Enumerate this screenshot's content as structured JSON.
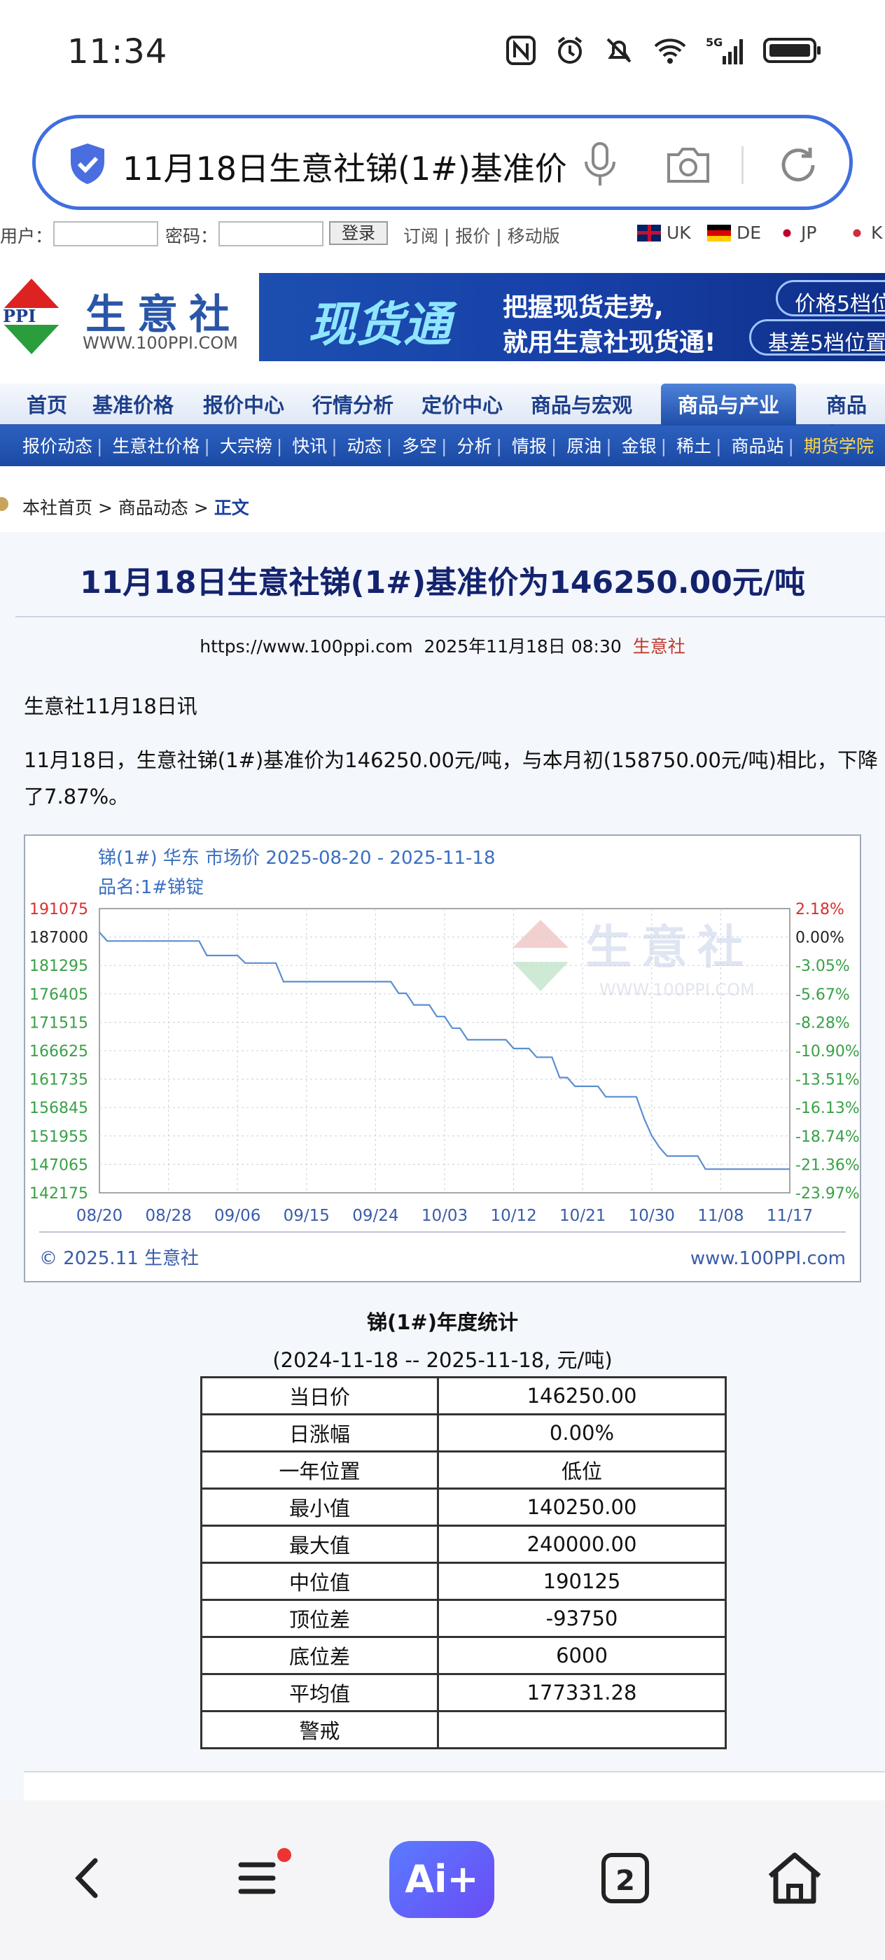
{
  "status_bar": {
    "time": "11:34",
    "network": "5G"
  },
  "url_bar": {
    "text": "11月18日生意社锑(1#)基准价"
  },
  "login_bar": {
    "user_label": "用户：",
    "password_label": "密码：",
    "login_button": "登录",
    "links": "订阅 | 报价 | 移动版",
    "languages": [
      "UK",
      "DE",
      "JP",
      "K"
    ]
  },
  "header": {
    "logo_text": "生意社",
    "logo_url": "WWW.100PPI.COM",
    "banner": {
      "title": "现货通",
      "line1": "把握现货走势,",
      "line2": "就用生意社现货通!",
      "pill1": "价格5档位",
      "pill2": "基差5档位置"
    }
  },
  "nav": {
    "tabs": [
      "首页",
      "基准价格",
      "报价中心",
      "行情分析",
      "定价中心",
      "商品与宏观",
      "商品与产业",
      "商品与"
    ],
    "active": "商品与产业"
  },
  "subnav": {
    "items": [
      "报价动态",
      "生意社价格",
      "大宗榜",
      "快讯",
      "动态",
      "多空",
      "分析",
      "情报",
      "原油",
      "金银",
      "稀土",
      "商品站"
    ],
    "highlight": "期货学院"
  },
  "breadcrumb": {
    "home": "本社首页",
    "section": "商品动态",
    "current": "正文",
    "sep": ">"
  },
  "article": {
    "title": "11月18日生意社锑(1#)基准价为146250.00元/吨",
    "url": "https://www.100ppi.com",
    "datetime": "2025年11月18日 08:30",
    "source": "生意社",
    "para1": "生意社11月18日讯",
    "para2": "11月18日，生意社锑(1#)基准价为146250.00元/吨，与本月初(158750.00元/吨)相比，下降了7.87%。"
  },
  "chart_data": {
    "type": "line",
    "title": "锑(1#) 华东 市场价 2025-08-20 - 2025-11-18",
    "subtitle": "品名:1#锑锭",
    "footer_left": "© 2025.11 生意社",
    "footer_right": "www.100PPI.com",
    "watermark": "生意社",
    "watermark_url": "WWW.100PPI.COM",
    "x_ticks": [
      "08/20",
      "08/28",
      "09/06",
      "09/15",
      "09/24",
      "10/03",
      "10/12",
      "10/21",
      "10/30",
      "11/08",
      "11/17"
    ],
    "y_ticks_left": [
      "191075",
      "187000",
      "181295",
      "176405",
      "171515",
      "166625",
      "161735",
      "156845",
      "151955",
      "147065",
      "142175"
    ],
    "y_ticks_right": [
      "2.18%",
      "0.00%",
      "-3.05%",
      "-5.67%",
      "-8.28%",
      "-10.90%",
      "-13.51%",
      "-16.13%",
      "-18.74%",
      "-21.36%",
      "-23.97%"
    ],
    "ylim": [
      142175,
      191075
    ],
    "x_range_days": [
      0,
      90
    ],
    "series": [
      {
        "points": [
          [
            0,
            187000
          ],
          [
            1,
            185500
          ],
          [
            13,
            185500
          ],
          [
            14,
            183000
          ],
          [
            18,
            183000
          ],
          [
            19,
            181700
          ],
          [
            23,
            181700
          ],
          [
            24,
            178500
          ],
          [
            34,
            178500
          ],
          [
            35,
            178500
          ],
          [
            38,
            178500
          ],
          [
            39,
            176500
          ],
          [
            40,
            176500
          ],
          [
            41,
            174500
          ],
          [
            43,
            174500
          ],
          [
            44,
            172500
          ],
          [
            45,
            172500
          ],
          [
            46,
            170500
          ],
          [
            47,
            170500
          ],
          [
            48,
            168500
          ],
          [
            53,
            168500
          ],
          [
            54,
            167000
          ],
          [
            56,
            167000
          ],
          [
            57,
            165500
          ],
          [
            59,
            165500
          ],
          [
            60,
            162000
          ],
          [
            61,
            162000
          ],
          [
            62,
            160500
          ],
          [
            65,
            160500
          ],
          [
            66,
            158700
          ],
          [
            70,
            158700
          ],
          [
            71,
            155000
          ],
          [
            72,
            152000
          ],
          [
            73,
            150000
          ],
          [
            74,
            148500
          ],
          [
            78,
            148500
          ],
          [
            79,
            146250
          ],
          [
            90,
            146250
          ]
        ]
      }
    ]
  },
  "stats": {
    "title": "锑(1#)年度统计",
    "subtitle": "(2024-11-18 -- 2025-11-18, 元/吨)",
    "rows": [
      {
        "k": "当日价",
        "v": "146250.00"
      },
      {
        "k": "日涨幅",
        "v": "0.00%"
      },
      {
        "k": "一年位置",
        "v": "低位"
      },
      {
        "k": "最小值",
        "v": "140250.00"
      },
      {
        "k": "最大值",
        "v": "240000.00"
      },
      {
        "k": "中位值",
        "v": "190125"
      },
      {
        "k": "顶位差",
        "v": "-93750"
      },
      {
        "k": "底位差",
        "v": "6000"
      },
      {
        "k": "平均值",
        "v": "177331.28"
      },
      {
        "k": "警戒",
        "v": ""
      }
    ]
  },
  "bottom_nav": {
    "ai_label": "Ai+",
    "tabs_count": "2"
  },
  "colors": {
    "accent": "#3f6fe0",
    "nav_blue": "#1f4ea8",
    "title_navy": "#14236e",
    "line_blue": "#5a8fd0"
  }
}
